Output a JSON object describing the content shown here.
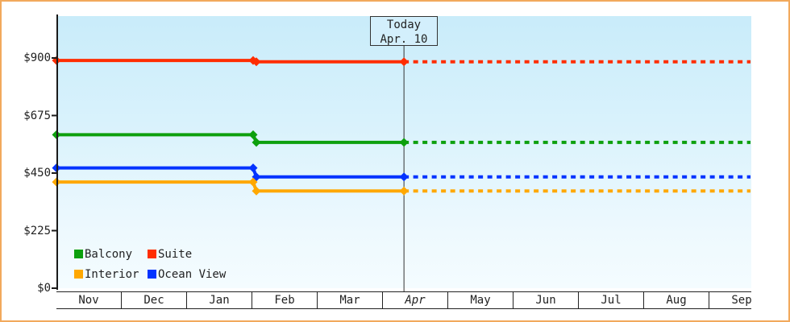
{
  "colors": {
    "frame_border": "#f2a95c",
    "plot_bg_top": "#c9ecfa",
    "plot_bg_bottom": "#f4fcff",
    "axis": "#1a1a1a",
    "text": "#222222",
    "today_line": "#333333",
    "today_box_bg": "#d3effc"
  },
  "chart_data": {
    "type": "line",
    "x_categories": [
      "Nov",
      "Dec",
      "Jan",
      "Feb",
      "Mar",
      "Apr",
      "May",
      "Jun",
      "Jul",
      "Aug",
      "Sep"
    ],
    "current_month": "Apr",
    "today_marker": {
      "label": "Today",
      "date_label": "Apr. 10",
      "month": "Apr",
      "day": 10
    },
    "y_axis": {
      "min": 0,
      "max": 900,
      "tick_values": [
        0,
        225,
        450,
        675,
        900
      ],
      "tick_labels": [
        "$0",
        "$225",
        "$450",
        "$675",
        "$900"
      ]
    },
    "price_change_month": "Feb",
    "series": [
      {
        "name": "Suite",
        "color": "#ff2d00",
        "initial_value": 890,
        "current_value": 885
      },
      {
        "name": "Balcony",
        "color": "#0da00d",
        "initial_value": 600,
        "current_value": 570
      },
      {
        "name": "Ocean View",
        "color": "#0333ff",
        "initial_value": 470,
        "current_value": 435
      },
      {
        "name": "Interior",
        "color": "#ffa800",
        "initial_value": 415,
        "current_value": 380
      }
    ],
    "legend": {
      "position": "bottom-left",
      "rows": [
        [
          "Balcony",
          "Suite"
        ],
        [
          "Interior",
          "Ocean View"
        ]
      ]
    },
    "grid": false,
    "line_style_before_today": "solid",
    "line_style_after_today": "dashed"
  }
}
